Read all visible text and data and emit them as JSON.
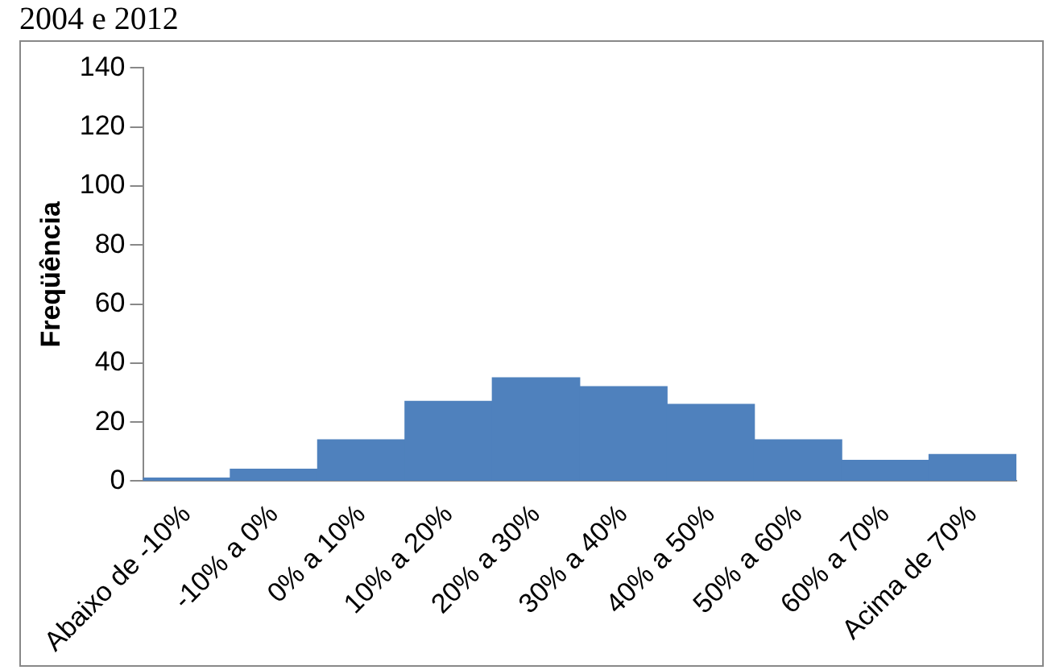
{
  "chart_data": {
    "type": "bar",
    "ylabel": "Freqüência",
    "annotations": [
      "2004 e 2012"
    ],
    "categories": [
      "Abaixo de -10%",
      "-10% a 0%",
      "0% a 10%",
      "10% a 20%",
      "20% a 30%",
      "30% a 40%",
      "40% a 50%",
      "50% a 60%",
      "60% a 70%",
      "Acima de 70%"
    ],
    "values": [
      1,
      4,
      14,
      27,
      35,
      32,
      26,
      14,
      7,
      9
    ],
    "color": "#4f81bd",
    "ylim": [
      0,
      140
    ],
    "yticks": [
      0,
      20,
      40,
      60,
      80,
      100,
      120,
      140
    ],
    "grid": false,
    "legend": false
  }
}
